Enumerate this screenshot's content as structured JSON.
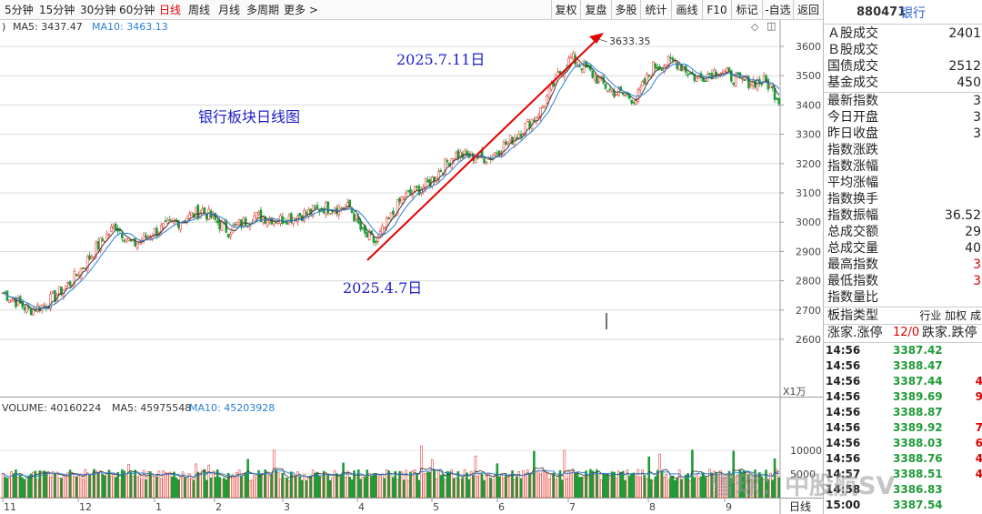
{
  "toolbar": {
    "periods": [
      "5分钟",
      "15分钟",
      "30分钟",
      "60分钟",
      "日线",
      "周线",
      "月线",
      "多周期",
      "更多 >"
    ],
    "active_period": "日线",
    "right_buttons": [
      "复权",
      "复盘",
      "多股",
      "统计",
      "画线",
      "F10",
      "标记",
      "-自选",
      "返回"
    ]
  },
  "price_panel": {
    "ma_labels": {
      "ma5": "MA5: 3437.47",
      "ma10": "MA10: 3463.13"
    },
    "y_ticks": [
      "3600",
      "3500",
      "3400",
      "3300",
      "3200",
      "3100",
      "3000",
      "2900",
      "2800",
      "2700",
      "2600"
    ],
    "annotation_title": "银行板块日线图",
    "annotation_start": "2025.4.7日",
    "annotation_end": "2025.7.11日",
    "high_label": "3633.35",
    "colors": {
      "up": "#e8403a",
      "down": "#1e9b36",
      "ma5": "#3a3a3a",
      "ma10": "#2a7fd4",
      "arrow": "#e60000",
      "annot": "#2020c8"
    }
  },
  "volume_panel": {
    "labels": {
      "volume": "VOLUME: 40160224",
      "ma5": "MA5: 45975548",
      "ma10": "MA10: 45203928"
    },
    "unit": "X1万",
    "y_ticks": [
      "10000",
      "5000"
    ],
    "months": [
      "11",
      "12",
      "1",
      "2",
      "3",
      "4",
      "5",
      "6",
      "7",
      "8",
      "9"
    ],
    "period_label": "日线"
  },
  "info_panel": {
    "code": "880471",
    "name": "银行",
    "rows": [
      {
        "label": "Ａ股成交",
        "value": "2401"
      },
      {
        "label": "Ｂ股成交",
        "value": ""
      },
      {
        "label": "国债成交",
        "value": "2512"
      },
      {
        "label": "基金成交",
        "value": "450"
      },
      {
        "label": "最新指数",
        "value": "3"
      },
      {
        "label": "今日开盘",
        "value": "3"
      },
      {
        "label": "昨日收盘",
        "value": "3"
      },
      {
        "label": "指数涨跌",
        "value": ""
      },
      {
        "label": "指数涨幅",
        "value": ""
      },
      {
        "label": "平均涨幅",
        "value": ""
      },
      {
        "label": "指数换手",
        "value": ""
      },
      {
        "label": "指数振幅",
        "value": "36.52"
      },
      {
        "label": "总成交额",
        "value": "29"
      },
      {
        "label": "总成交量",
        "value": "40"
      },
      {
        "label": "最高指数",
        "value": "3"
      },
      {
        "label": "最低指数",
        "value": "3"
      },
      {
        "label": "指数量比",
        "value": ""
      }
    ],
    "type_row": {
      "label": "板指类型",
      "value": "行业 加权 成"
    },
    "updown_row": {
      "label": "涨家.涨停",
      "value": "12/0",
      "label2": "跌家.跌停"
    },
    "ticks": [
      {
        "time": "14:56",
        "price": "3387.42",
        "vol": ""
      },
      {
        "time": "14:56",
        "price": "3388.47",
        "vol": ""
      },
      {
        "time": "14:56",
        "price": "3387.44",
        "vol": "4"
      },
      {
        "time": "14:56",
        "price": "3389.69",
        "vol": "9"
      },
      {
        "time": "14:56",
        "price": "3388.87",
        "vol": ""
      },
      {
        "time": "14:56",
        "price": "3389.92",
        "vol": "7"
      },
      {
        "time": "14:56",
        "price": "3388.03",
        "vol": "6"
      },
      {
        "time": "14:56",
        "price": "3388.76",
        "vol": "4"
      },
      {
        "time": "14:57",
        "price": "3388.51",
        "vol": "4"
      },
      {
        "time": "14:58",
        "price": "3386.83",
        "vol": ""
      },
      {
        "time": "15:00",
        "price": "3387.54",
        "vol": ""
      }
    ]
  },
  "watermark": "雪球：中股航SV"
}
